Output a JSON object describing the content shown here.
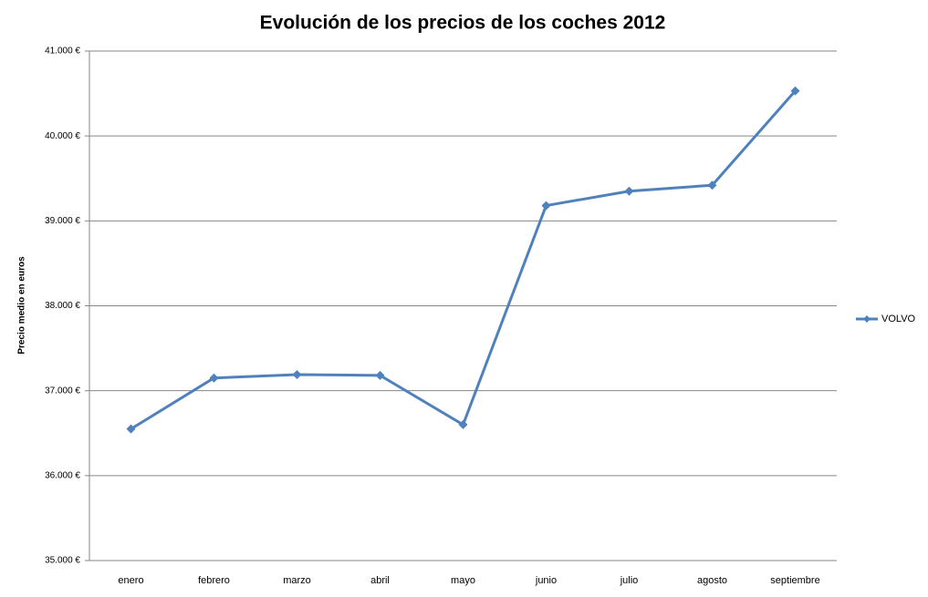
{
  "chart_data": {
    "type": "line",
    "title": "Evolución de los precios de los coches 2012",
    "y_label": "Precio medio en euros",
    "categories": [
      "enero",
      "febrero",
      "marzo",
      "abril",
      "mayo",
      "junio",
      "julio",
      "agosto",
      "septiembre"
    ],
    "series": [
      {
        "name": "VOLVO",
        "color": "#4f81bd",
        "values": [
          36550,
          37150,
          37190,
          37180,
          36600,
          39180,
          39350,
          39420,
          40530
        ]
      }
    ],
    "ylim": [
      35000,
      41000
    ],
    "yticks": [
      {
        "value": 35000,
        "label": "35.000 €"
      },
      {
        "value": 36000,
        "label": "36.000 €"
      },
      {
        "value": 37000,
        "label": "37.000 €"
      },
      {
        "value": 38000,
        "label": "38.000 €"
      },
      {
        "value": 39000,
        "label": "39.000 €"
      },
      {
        "value": 40000,
        "label": "40.000 €"
      },
      {
        "value": 41000,
        "label": "41.000 €"
      }
    ],
    "grid": true,
    "legend": "right"
  }
}
